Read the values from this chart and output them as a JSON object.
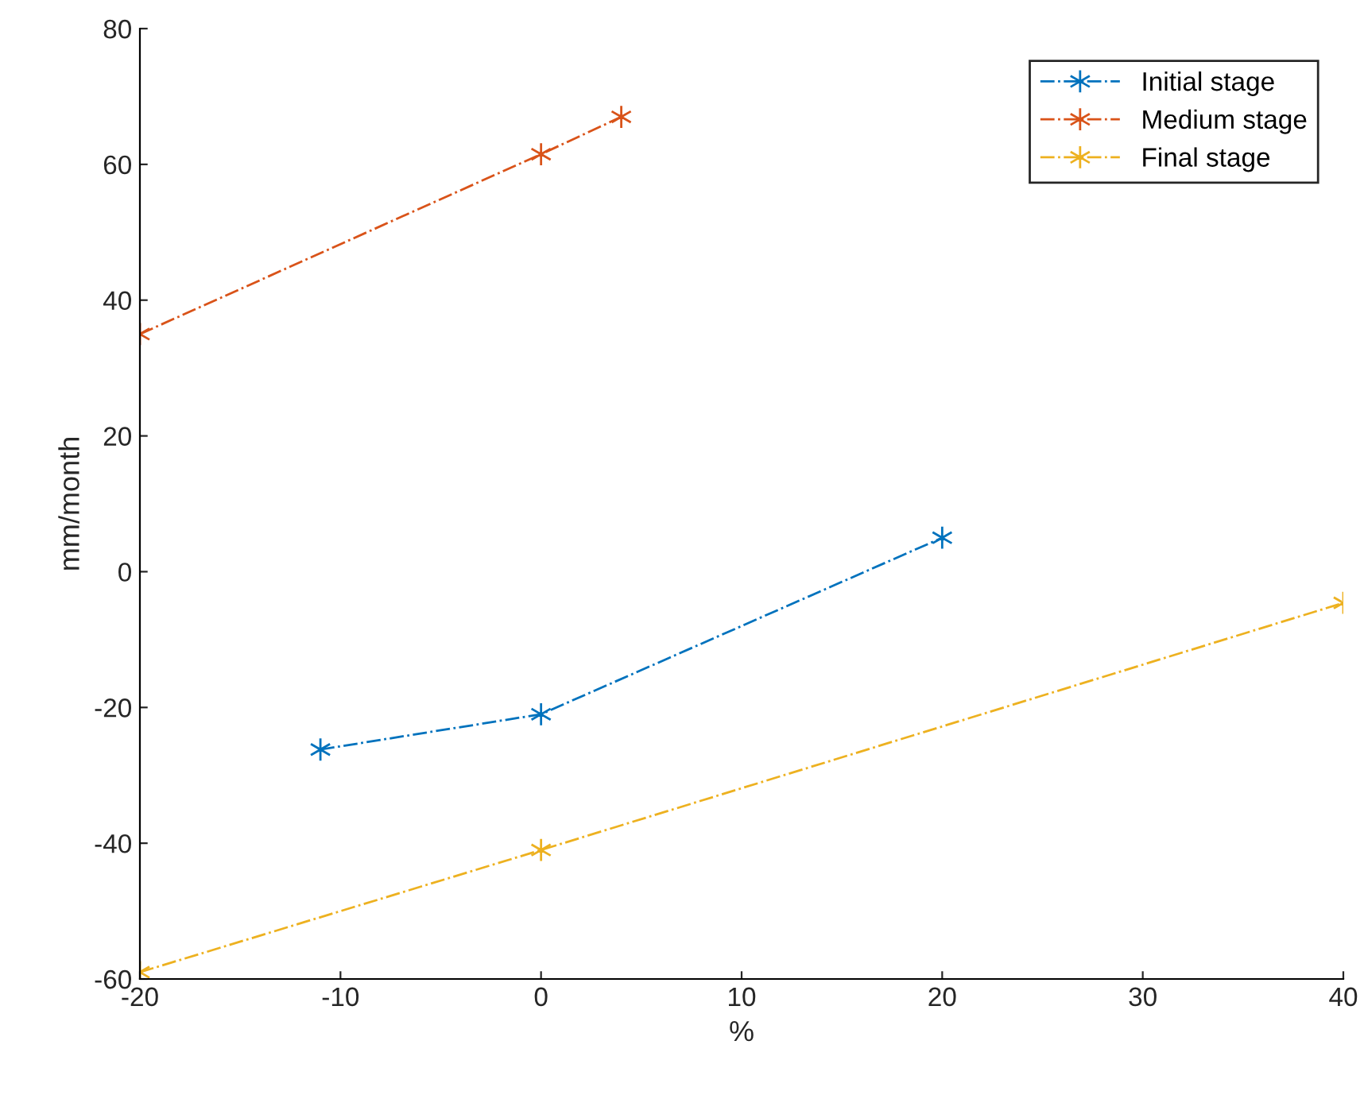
{
  "chart_data": {
    "type": "line",
    "xlabel": "%",
    "ylabel": "mm/month",
    "xlim": [
      -20,
      40
    ],
    "xticks": [
      -20,
      -10,
      0,
      10,
      20,
      30,
      40
    ],
    "ylim": [
      -60,
      80
    ],
    "yticks": [
      -60,
      -40,
      -20,
      0,
      20,
      40,
      60,
      80
    ],
    "marker": "cross",
    "line_style": "dashdot",
    "grid": false,
    "legend": "top right",
    "series": [
      {
        "name": "Initial stage",
        "color": "#0072bd",
        "x": [
          -11,
          0,
          20
        ],
        "values": [
          -26.2,
          -21,
          5
        ]
      },
      {
        "name": "Medium stage",
        "color": "#d95319",
        "x": [
          -20,
          0,
          4
        ],
        "values": [
          35,
          61.5,
          67
        ]
      },
      {
        "name": "Final stage",
        "color": "#edb120",
        "x": [
          -20,
          0,
          40
        ],
        "values": [
          -59,
          -41,
          -4.6
        ]
      }
    ]
  }
}
